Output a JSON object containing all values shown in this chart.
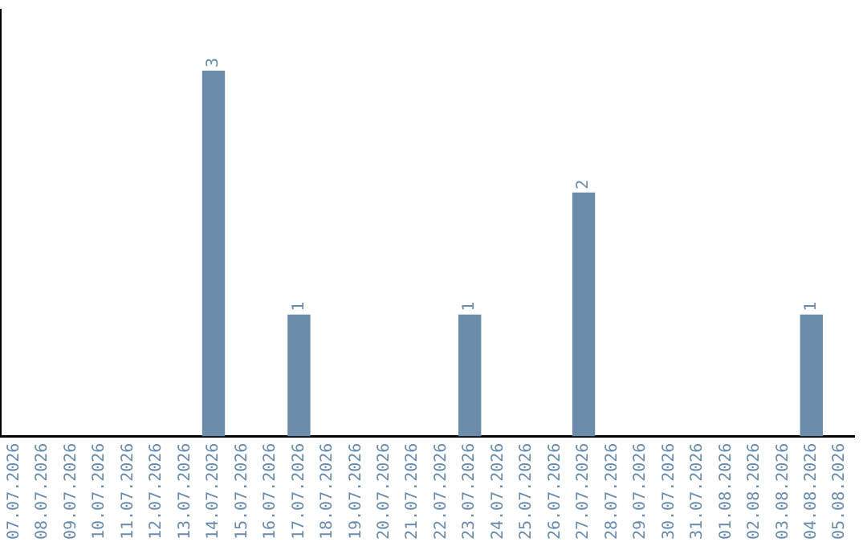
{
  "chart_data": {
    "type": "bar",
    "categories": [
      "07.07.2026",
      "08.07.2026",
      "09.07.2026",
      "10.07.2026",
      "11.07.2026",
      "12.07.2026",
      "13.07.2026",
      "14.07.2026",
      "15.07.2026",
      "16.07.2026",
      "17.07.2026",
      "18.07.2026",
      "19.07.2026",
      "20.07.2026",
      "21.07.2026",
      "22.07.2026",
      "23.07.2026",
      "24.07.2026",
      "25.07.2026",
      "26.07.2026",
      "27.07.2026",
      "28.07.2026",
      "29.07.2026",
      "30.07.2026",
      "31.07.2026",
      "01.08.2026",
      "02.08.2026",
      "03.08.2026",
      "04.08.2026",
      "05.08.2026"
    ],
    "values": [
      0,
      0,
      0,
      0,
      0,
      0,
      0,
      3,
      0,
      0,
      1,
      0,
      0,
      0,
      0,
      0,
      1,
      0,
      0,
      0,
      2,
      0,
      0,
      0,
      0,
      0,
      0,
      0,
      1,
      0
    ],
    "value_labels": [
      null,
      null,
      null,
      null,
      null,
      null,
      null,
      "3",
      null,
      null,
      "1",
      null,
      null,
      null,
      null,
      null,
      "1",
      null,
      null,
      null,
      "2",
      null,
      null,
      null,
      null,
      null,
      null,
      null,
      "1",
      null
    ],
    "color": "#6a8caa",
    "grid": false,
    "legend": false
  }
}
